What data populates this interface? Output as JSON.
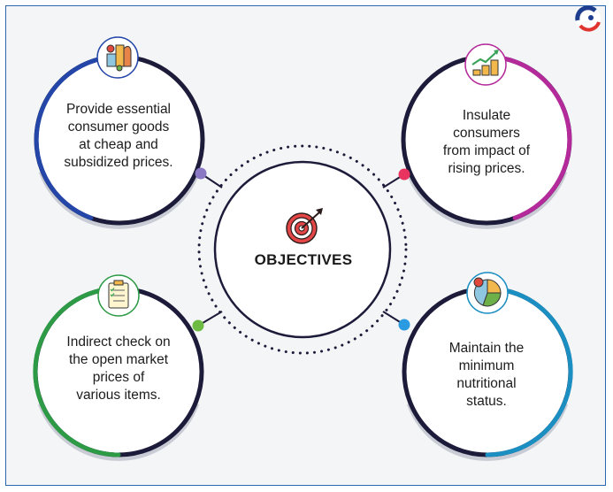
{
  "center": {
    "label": "OBJECTIVES",
    "icon": "target-icon"
  },
  "objectives": [
    {
      "lines": [
        "Provide essential",
        "consumer goods",
        "at cheap and",
        "subsidized prices."
      ],
      "icon": "grocery-icon",
      "color": "#2446a8",
      "dot_color": "#8a78c4"
    },
    {
      "lines": [
        "Insulate",
        "consumers",
        "from impact of",
        "rising prices."
      ],
      "icon": "growth-coins-icon",
      "color": "#b42a9a",
      "dot_color": "#e8345e"
    },
    {
      "lines": [
        "Indirect check on",
        "the open market",
        "prices of",
        "various items."
      ],
      "icon": "checklist-icon",
      "color": "#2d9a45",
      "dot_color": "#6dbb43"
    },
    {
      "lines": [
        "Maintain the",
        "minimum",
        "nutritional",
        "status."
      ],
      "icon": "nutrition-chart-icon",
      "color": "#1b8ec2",
      "dot_color": "#2a9be0"
    }
  ],
  "logo": {
    "icon": "brand-logo-icon"
  }
}
